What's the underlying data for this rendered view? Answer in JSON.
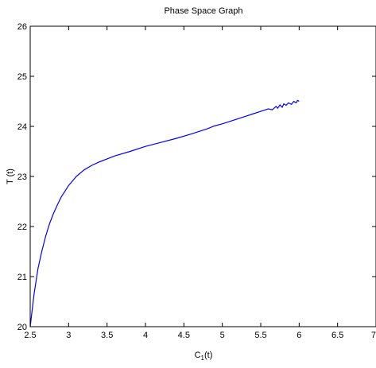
{
  "chart_data": {
    "type": "line",
    "title": "Phase Space Graph",
    "xlabel": "C",
    "xlabel_sub": "1",
    "xlabel_suffix": "(t)",
    "ylabel": "T (t)",
    "xlim": [
      2.5,
      7
    ],
    "ylim": [
      20,
      26
    ],
    "xticks": [
      "2.5",
      "3",
      "3.5",
      "4",
      "4.5",
      "5",
      "5.5",
      "6",
      "6.5",
      "7"
    ],
    "yticks": [
      "20",
      "21",
      "22",
      "23",
      "24",
      "25",
      "26"
    ],
    "grid": false,
    "series": [
      {
        "color": "#0000ff",
        "x": [
          2.5,
          2.55,
          2.6,
          2.65,
          2.7,
          2.75,
          2.8,
          2.85,
          2.9,
          3.0,
          3.1,
          3.2,
          3.3,
          3.4,
          3.5,
          3.6,
          3.8,
          4.0,
          4.2,
          4.4,
          4.6,
          4.8,
          4.9,
          5.0,
          5.1,
          5.2,
          5.3,
          5.4,
          5.5,
          5.6,
          5.65,
          5.7,
          5.72,
          5.75,
          5.78,
          5.8,
          5.83,
          5.86,
          5.9,
          5.93,
          5.96,
          5.98,
          6.0
        ],
        "y": [
          20.0,
          20.65,
          21.15,
          21.5,
          21.8,
          22.05,
          22.25,
          22.42,
          22.58,
          22.82,
          23.0,
          23.13,
          23.22,
          23.29,
          23.35,
          23.41,
          23.5,
          23.6,
          23.68,
          23.76,
          23.85,
          23.95,
          24.01,
          24.05,
          24.1,
          24.15,
          24.2,
          24.25,
          24.3,
          24.35,
          24.33,
          24.4,
          24.36,
          24.43,
          24.38,
          24.45,
          24.42,
          24.47,
          24.44,
          24.5,
          24.47,
          24.52,
          24.5
        ]
      }
    ]
  }
}
